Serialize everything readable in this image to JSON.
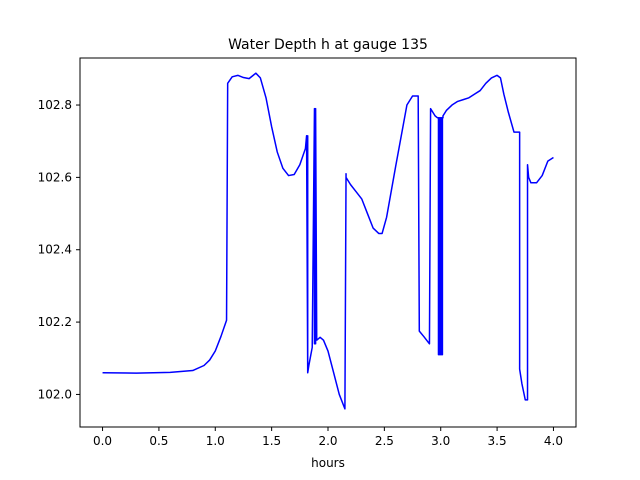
{
  "chart_data": {
    "type": "line",
    "title": "Water Depth h at gauge 135",
    "xlabel": "hours",
    "ylabel": "",
    "xlim": [
      -0.2,
      4.2
    ],
    "ylim": [
      101.91,
      102.93
    ],
    "xticks": [
      0.0,
      0.5,
      1.0,
      1.5,
      2.0,
      2.5,
      3.0,
      3.5,
      4.0
    ],
    "xtick_labels": [
      "0.0",
      "0.5",
      "1.0",
      "1.5",
      "2.0",
      "2.5",
      "3.0",
      "3.5",
      "4.0"
    ],
    "yticks": [
      102.0,
      102.2,
      102.4,
      102.6,
      102.8
    ],
    "ytick_labels": [
      "102.0",
      "102.2",
      "102.4",
      "102.6",
      "102.8"
    ],
    "grid": false,
    "series": [
      {
        "color": "#0000ff",
        "x": [
          0.0,
          0.3,
          0.6,
          0.8,
          0.9,
          0.95,
          1.0,
          1.05,
          1.1,
          1.11,
          1.11,
          1.15,
          1.2,
          1.25,
          1.3,
          1.36,
          1.4,
          1.45,
          1.5,
          1.55,
          1.6,
          1.65,
          1.7,
          1.75,
          1.8,
          1.81,
          1.81,
          1.82,
          1.82,
          1.82,
          1.82,
          1.83,
          1.86,
          1.88,
          1.88,
          1.89,
          1.89,
          1.9,
          1.93,
          1.96,
          2.0,
          2.05,
          2.1,
          2.15,
          2.16,
          2.16,
          2.2,
          2.25,
          2.3,
          2.35,
          2.4,
          2.45,
          2.48,
          2.52,
          2.6,
          2.7,
          2.75,
          2.78,
          2.8,
          2.81,
          2.81,
          2.85,
          2.9,
          2.91,
          2.91,
          2.95,
          2.97,
          2.98,
          2.98,
          2.985,
          2.985,
          2.99,
          2.99,
          2.995,
          2.995,
          3.0,
          3.0,
          3.005,
          3.005,
          3.01,
          3.01,
          3.015,
          3.015,
          3.02,
          3.02,
          3.05,
          3.1,
          3.15,
          3.2,
          3.25,
          3.3,
          3.35,
          3.4,
          3.45,
          3.5,
          3.53,
          3.56,
          3.6,
          3.65,
          3.7,
          3.7,
          3.71,
          3.72,
          3.75,
          3.77,
          3.77,
          3.78,
          3.8,
          3.85,
          3.9,
          3.95,
          4.0
        ],
        "values": [
          102.06,
          102.059,
          102.061,
          102.066,
          102.08,
          102.095,
          102.12,
          102.16,
          102.205,
          102.855,
          102.86,
          102.878,
          102.882,
          102.876,
          102.873,
          102.888,
          102.875,
          102.82,
          102.74,
          102.67,
          102.625,
          102.605,
          102.608,
          102.635,
          102.68,
          102.715,
          102.715,
          102.06,
          102.06,
          102.715,
          102.06,
          102.08,
          102.13,
          102.79,
          102.14,
          102.14,
          102.79,
          102.15,
          102.158,
          102.15,
          102.12,
          102.06,
          102.0,
          101.96,
          102.61,
          102.6,
          102.58,
          102.56,
          102.54,
          102.5,
          102.46,
          102.445,
          102.445,
          102.49,
          102.63,
          102.8,
          102.825,
          102.825,
          102.825,
          102.175,
          102.175,
          102.16,
          102.14,
          102.785,
          102.79,
          102.77,
          102.765,
          102.765,
          102.11,
          102.11,
          102.765,
          102.765,
          102.11,
          102.11,
          102.765,
          102.765,
          102.11,
          102.11,
          102.765,
          102.765,
          102.11,
          102.11,
          102.765,
          102.765,
          102.77,
          102.785,
          102.8,
          102.81,
          102.815,
          102.82,
          102.83,
          102.84,
          102.86,
          102.875,
          102.882,
          102.875,
          102.83,
          102.78,
          102.725,
          102.725,
          102.07,
          102.05,
          102.03,
          101.985,
          101.985,
          102.635,
          102.6,
          102.585,
          102.585,
          102.605,
          102.645,
          102.655
        ]
      }
    ]
  }
}
